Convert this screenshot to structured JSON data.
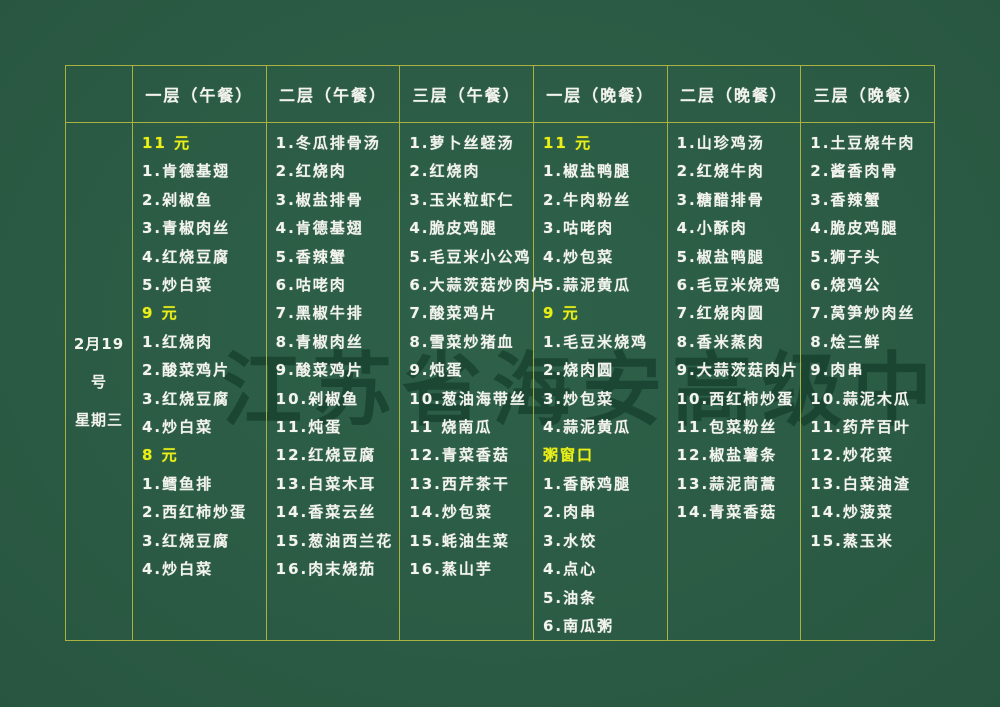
{
  "board": {
    "background_color": "#2b5b44",
    "grid_color": "#a9b23f",
    "text_color": "#f4f4ef",
    "highlight_color": "#e9ef17",
    "watermark": "江苏省海安高级中"
  },
  "date": {
    "line1": "2月19号",
    "line2": "星期三"
  },
  "columns": [
    {
      "header": "一层（午餐）",
      "items": [
        {
          "text": "11 元",
          "highlight": true
        },
        {
          "text": "1.肯德基翅",
          "highlight": false
        },
        {
          "text": "2.剁椒鱼",
          "highlight": false
        },
        {
          "text": "3.青椒肉丝",
          "highlight": false
        },
        {
          "text": "4.红烧豆腐",
          "highlight": false
        },
        {
          "text": "5.炒白菜",
          "highlight": false
        },
        {
          "text": "9 元",
          "highlight": true
        },
        {
          "text": "1.红烧肉",
          "highlight": false
        },
        {
          "text": "2.酸菜鸡片",
          "highlight": false
        },
        {
          "text": "3.红烧豆腐",
          "highlight": false
        },
        {
          "text": "4.炒白菜",
          "highlight": false
        },
        {
          "text": "8 元",
          "highlight": true
        },
        {
          "text": "1.鳕鱼排",
          "highlight": false
        },
        {
          "text": "2.西红柿炒蛋",
          "highlight": false
        },
        {
          "text": "3.红烧豆腐",
          "highlight": false
        },
        {
          "text": "4.炒白菜",
          "highlight": false
        }
      ]
    },
    {
      "header": "二层（午餐）",
      "items": [
        {
          "text": "1.冬瓜排骨汤",
          "highlight": false
        },
        {
          "text": "2.红烧肉",
          "highlight": false
        },
        {
          "text": "3.椒盐排骨",
          "highlight": false
        },
        {
          "text": "4.肯德基翅",
          "highlight": false
        },
        {
          "text": "5.香辣蟹",
          "highlight": false
        },
        {
          "text": "6.咕咾肉",
          "highlight": false
        },
        {
          "text": "7.黑椒牛排",
          "highlight": false
        },
        {
          "text": "8.青椒肉丝",
          "highlight": false
        },
        {
          "text": "9.酸菜鸡片",
          "highlight": false
        },
        {
          "text": "10.剁椒鱼",
          "highlight": false
        },
        {
          "text": "11.炖蛋",
          "highlight": false
        },
        {
          "text": "12.红烧豆腐",
          "highlight": false
        },
        {
          "text": "13.白菜木耳",
          "highlight": false
        },
        {
          "text": "14.香菜云丝",
          "highlight": false
        },
        {
          "text": "15.葱油西兰花",
          "highlight": false
        },
        {
          "text": "16.肉末烧茄",
          "highlight": false
        }
      ]
    },
    {
      "header": "三层（午餐）",
      "items": [
        {
          "text": "1.萝卜丝蛏汤",
          "highlight": false
        },
        {
          "text": "2.红烧肉",
          "highlight": false
        },
        {
          "text": "3.玉米粒虾仁",
          "highlight": false
        },
        {
          "text": "4.脆皮鸡腿",
          "highlight": false
        },
        {
          "text": "5.毛豆米小公鸡",
          "highlight": false
        },
        {
          "text": "6.大蒜茨菇炒肉片",
          "highlight": false
        },
        {
          "text": "7.酸菜鸡片",
          "highlight": false
        },
        {
          "text": "8.雪菜炒猪血",
          "highlight": false
        },
        {
          "text": "9.炖蛋",
          "highlight": false
        },
        {
          "text": "10.葱油海带丝",
          "highlight": false
        },
        {
          "text": "11 烧南瓜",
          "highlight": false
        },
        {
          "text": "12.青菜香菇",
          "highlight": false
        },
        {
          "text": "13.西芹茶干",
          "highlight": false
        },
        {
          "text": "14.炒包菜",
          "highlight": false
        },
        {
          "text": "15.蚝油生菜",
          "highlight": false
        },
        {
          "text": "16.蒸山芋",
          "highlight": false
        }
      ]
    },
    {
      "header": "一层（晚餐）",
      "items": [
        {
          "text": "11 元",
          "highlight": true
        },
        {
          "text": "1.椒盐鸭腿",
          "highlight": false
        },
        {
          "text": "2.牛肉粉丝",
          "highlight": false
        },
        {
          "text": "3.咕咾肉",
          "highlight": false
        },
        {
          "text": "4.炒包菜",
          "highlight": false
        },
        {
          "text": "5.蒜泥黄瓜",
          "highlight": false
        },
        {
          "text": "9 元",
          "highlight": true
        },
        {
          "text": "1.毛豆米烧鸡",
          "highlight": false
        },
        {
          "text": "2.烧肉圆",
          "highlight": false
        },
        {
          "text": "3.炒包菜",
          "highlight": false
        },
        {
          "text": "4.蒜泥黄瓜",
          "highlight": false
        },
        {
          "text": "粥窗口",
          "highlight": true
        },
        {
          "text": "1.香酥鸡腿",
          "highlight": false
        },
        {
          "text": "2.肉串",
          "highlight": false
        },
        {
          "text": "3.水饺",
          "highlight": false
        },
        {
          "text": "4.点心",
          "highlight": false
        },
        {
          "text": "5.油条",
          "highlight": false
        },
        {
          "text": "6.南瓜粥",
          "highlight": false
        }
      ]
    },
    {
      "header": "二层（晚餐）",
      "items": [
        {
          "text": "1.山珍鸡汤",
          "highlight": false
        },
        {
          "text": "2.红烧牛肉",
          "highlight": false
        },
        {
          "text": "3.糖醋排骨",
          "highlight": false
        },
        {
          "text": "4.小酥肉",
          "highlight": false
        },
        {
          "text": "5.椒盐鸭腿",
          "highlight": false
        },
        {
          "text": "6.毛豆米烧鸡",
          "highlight": false
        },
        {
          "text": "7.红烧肉圆",
          "highlight": false
        },
        {
          "text": "8.香米蒸肉",
          "highlight": false
        },
        {
          "text": "9.大蒜茨菇肉片",
          "highlight": false
        },
        {
          "text": "10.西红柿炒蛋",
          "highlight": false
        },
        {
          "text": "11.包菜粉丝",
          "highlight": false
        },
        {
          "text": "12.椒盐薯条",
          "highlight": false
        },
        {
          "text": "13.蒜泥茼蒿",
          "highlight": false
        },
        {
          "text": "14.青菜香菇",
          "highlight": false
        }
      ]
    },
    {
      "header": "三层（晚餐）",
      "items": [
        {
          "text": "1.土豆烧牛肉",
          "highlight": false
        },
        {
          "text": "2.酱香肉骨",
          "highlight": false
        },
        {
          "text": "3.香辣蟹",
          "highlight": false
        },
        {
          "text": "4.脆皮鸡腿",
          "highlight": false
        },
        {
          "text": "5.狮子头",
          "highlight": false
        },
        {
          "text": "6.烧鸡公",
          "highlight": false
        },
        {
          "text": "7.莴笋炒肉丝",
          "highlight": false
        },
        {
          "text": "8.烩三鲜",
          "highlight": false
        },
        {
          "text": "9.肉串",
          "highlight": false
        },
        {
          "text": "10.蒜泥木瓜",
          "highlight": false
        },
        {
          "text": "11.药芹百叶",
          "highlight": false
        },
        {
          "text": "12.炒花菜",
          "highlight": false
        },
        {
          "text": "13.白菜油渣",
          "highlight": false
        },
        {
          "text": "14.炒菠菜",
          "highlight": false
        },
        {
          "text": "15.蒸玉米",
          "highlight": false
        }
      ]
    }
  ]
}
